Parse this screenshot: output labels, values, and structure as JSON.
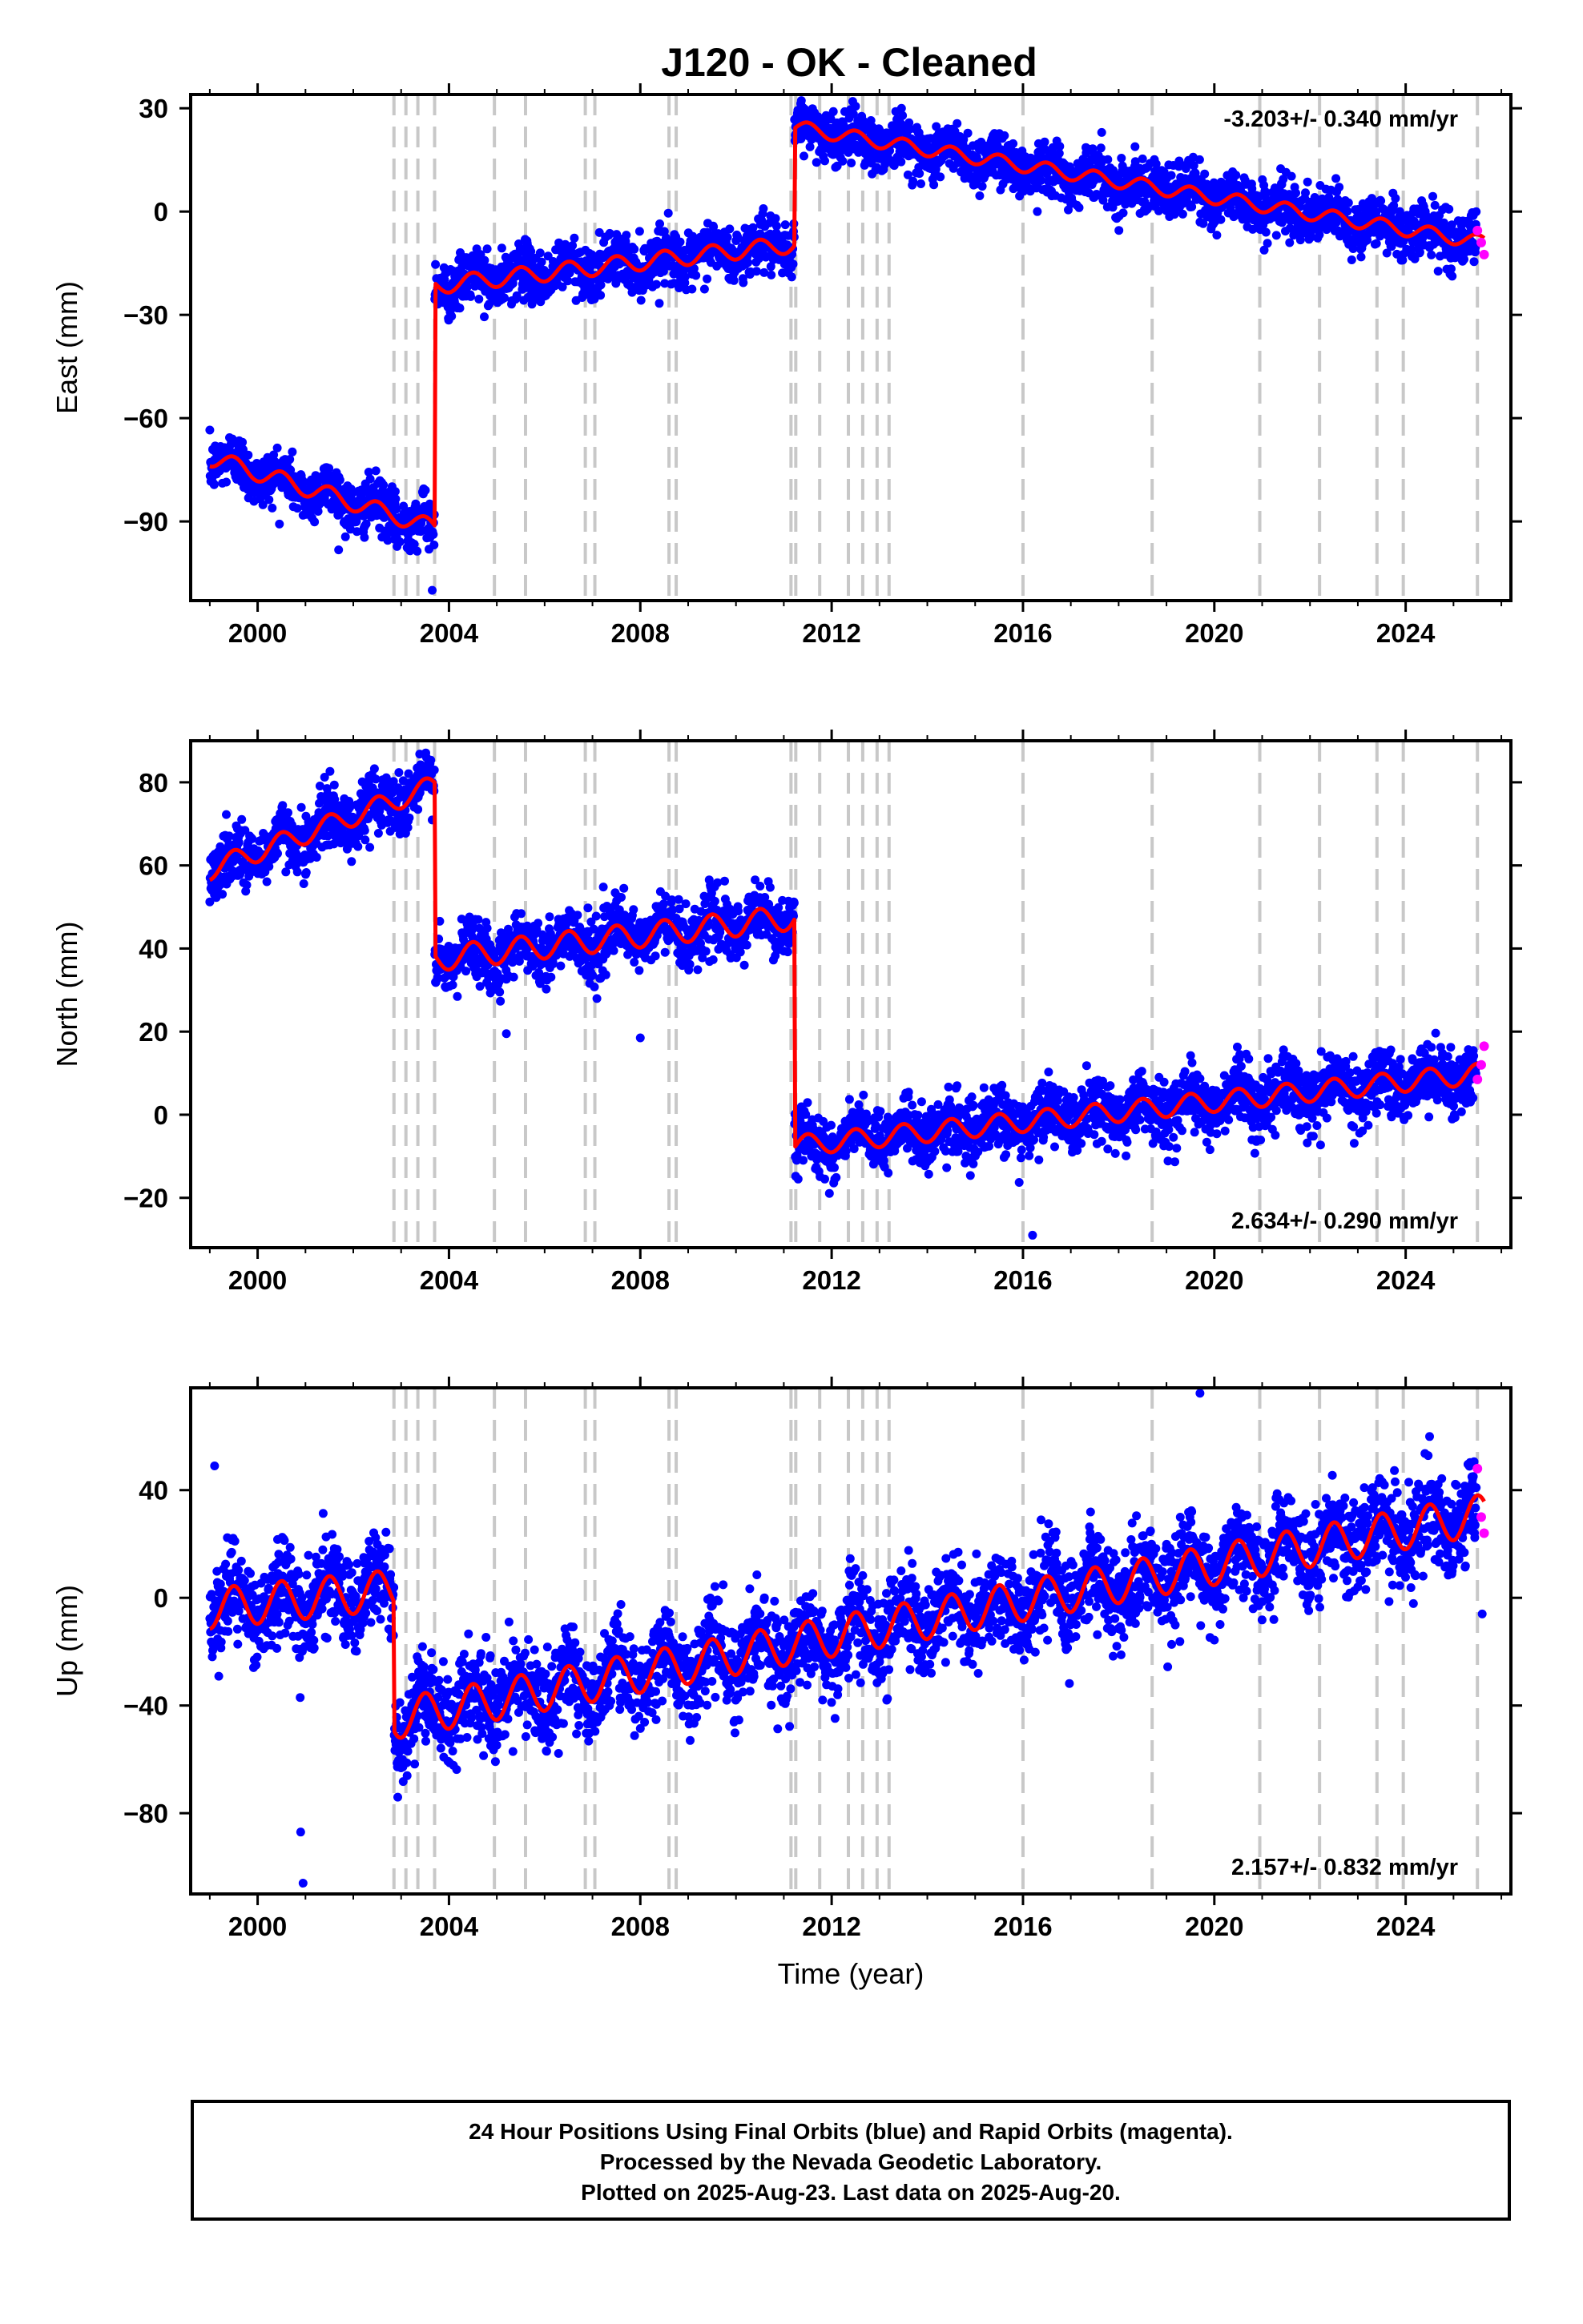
{
  "title": "J120  - OK - Cleaned",
  "colors": {
    "final_orbits": "#0000ff",
    "rapid_orbits": "#ff00ff",
    "model": "#ff0000",
    "event_lines": "#c8c8c8",
    "axes": "#000000"
  },
  "caption": {
    "line1": "24 Hour Positions Using Final Orbits (blue) and Rapid Orbits (magenta).",
    "line2": "Processed by the Nevada Geodetic Laboratory.",
    "line3": "Plotted on 2025-Aug-23. Last data on 2025-Aug-20."
  },
  "chart_data": [
    {
      "type": "scatter",
      "panel": "east",
      "ylabel": "East (mm)",
      "xlabel": "",
      "xlim": [
        1998.6,
        2026.2
      ],
      "ylim": [
        -113,
        34
      ],
      "xticks": [
        2000,
        2004,
        2008,
        2012,
        2016,
        2020,
        2024
      ],
      "yticks": [
        -90,
        -60,
        -30,
        0,
        30
      ],
      "rate_label": "-3.203+/- 0.340 mm/yr",
      "rate_label_position": "top-right",
      "grid": false,
      "series": [
        {
          "name": "Final Orbits (blue)",
          "marker": "dot"
        },
        {
          "name": "Rapid Orbits (magenta)",
          "marker": "dot"
        },
        {
          "marker": "line"
        }
      ],
      "model_segments": [
        {
          "x0": 1999.0,
          "x1": 2003.6,
          "y0": -71.5,
          "y1": -91.5,
          "amp": 2.5
        },
        {
          "x0": 2003.7,
          "x1": 2011.22,
          "y0": -21.5,
          "y1": -9.5,
          "amp": 2.5
        },
        {
          "x0": 2011.22,
          "x1": 2025.64,
          "y0": 24.5,
          "y1": -9.0,
          "amp": 2.0
        }
      ],
      "model_steps": [
        2003.7,
        2004.95,
        2007.0,
        2011.22
      ],
      "scatter_sd": 3.8,
      "rapid_points": {
        "x": [
          2025.5,
          2025.58,
          2025.64
        ],
        "y": [
          -5.5,
          -9.0,
          -12.5
        ]
      },
      "outliers": {
        "x": [
          2003.65,
          2016.3
        ],
        "y": [
          -110,
          0
        ]
      }
    },
    {
      "type": "scatter",
      "panel": "north",
      "ylabel": "North (mm)",
      "xlabel": "",
      "xlim": [
        1998.6,
        2026.2
      ],
      "ylim": [
        -32,
        90
      ],
      "xticks": [
        2000,
        2004,
        2008,
        2012,
        2016,
        2020,
        2024
      ],
      "yticks": [
        -20,
        0,
        20,
        40,
        60,
        80
      ],
      "rate_label": "2.634+/- 0.290 mm/yr",
      "rate_label_position": "bottom-right",
      "grid": false,
      "series": [
        {
          "name": "Final Orbits (blue)",
          "marker": "dot"
        },
        {
          "name": "Rapid Orbits (magenta)",
          "marker": "dot"
        },
        {
          "marker": "line"
        }
      ],
      "model_segments": [
        {
          "x0": 1999.0,
          "x1": 2003.65,
          "y0": 59.0,
          "y1": 79.0,
          "amp": 2.5
        },
        {
          "x0": 2003.7,
          "x1": 2011.22,
          "y0": 37.5,
          "y1": 47.5,
          "amp": 3.0
        },
        {
          "x0": 2011.22,
          "x1": 2025.64,
          "y0": -7.5,
          "y1": 10.0,
          "amp": 2.5
        }
      ],
      "model_steps": [
        2003.7,
        2011.22
      ],
      "scatter_sd": 3.6,
      "rapid_points": {
        "x": [
          2025.5,
          2025.58,
          2025.64
        ],
        "y": [
          8.5,
          12.0,
          16.5
        ]
      },
      "outliers": {
        "x": [
          2008.0,
          2005.2,
          2016.2
        ],
        "y": [
          18.5,
          19.5,
          -29
        ]
      }
    },
    {
      "type": "scatter",
      "panel": "up",
      "ylabel": "Up (mm)",
      "xlabel": "Time (year)",
      "xlim": [
        1998.6,
        2026.2
      ],
      "ylim": [
        -110,
        78
      ],
      "xticks": [
        2000,
        2004,
        2008,
        2012,
        2016,
        2020,
        2024
      ],
      "yticks": [
        -80,
        -40,
        0,
        40
      ],
      "rate_label": "2.157+/- 0.832 mm/yr",
      "rate_label_position": "bottom-right",
      "grid": false,
      "series": [
        {
          "name": "Final Orbits (blue)",
          "marker": "dot"
        },
        {
          "name": "Rapid Orbits (magenta)",
          "marker": "dot"
        },
        {
          "marker": "line"
        }
      ],
      "model_segments": [
        {
          "x0": 1999.0,
          "x1": 2002.85,
          "y0": -4.0,
          "y1": 3.0,
          "amp": 7.5
        },
        {
          "x0": 2002.85,
          "x1": 2025.64,
          "y0": -45.0,
          "y1": 31.0,
          "amp": 7.5
        }
      ],
      "model_steps": [
        2002.85
      ],
      "scatter_sd": 8.5,
      "rapid_points": {
        "x": [
          2025.5,
          2025.58,
          2025.64
        ],
        "y": [
          48.0,
          30.0,
          24.0
        ]
      },
      "outliers": {
        "x": [
          2000.9,
          2000.95,
          2019.7,
          2025.6,
          1999.1
        ],
        "y": [
          -87,
          -106,
          76,
          -6,
          49
        ]
      }
    }
  ],
  "event_lines": [
    2002.85,
    2003.1,
    2003.35,
    2003.7,
    2004.95,
    2005.6,
    2006.85,
    2007.05,
    2008.6,
    2008.75,
    2011.15,
    2011.25,
    2011.75,
    2012.35,
    2012.65,
    2012.95,
    2013.2,
    2016.0,
    2018.7,
    2020.95,
    2022.2,
    2023.4,
    2023.95,
    2025.5
  ]
}
